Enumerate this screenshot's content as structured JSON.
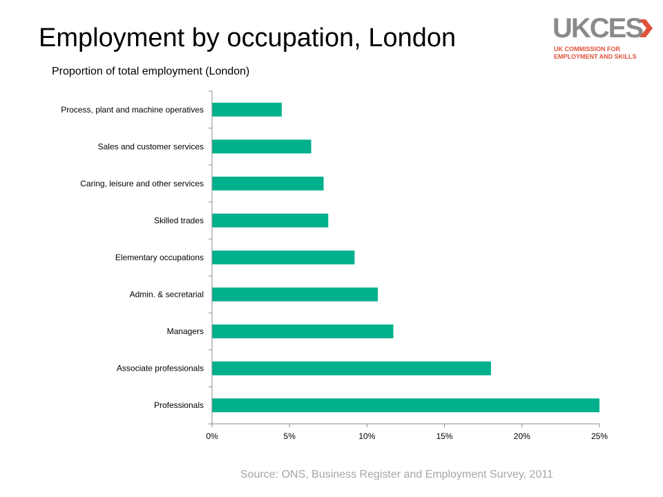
{
  "slide": {
    "title": "Employment by occupation, London",
    "source": "Source: ONS, Business Register and Employment Survey, 2011"
  },
  "logo": {
    "wordmark": "UKCES",
    "subtitle_line1": "UK COMMISSION FOR",
    "subtitle_line2": "EMPLOYMENT AND SKILLS",
    "colors": {
      "wordmark": "#8a8a8a",
      "accent": "#e0533a"
    }
  },
  "chart_data": {
    "type": "bar",
    "orientation": "horizontal",
    "title": "Proportion of total employment (London)",
    "xlabel": "",
    "ylabel": "",
    "categories": [
      "Process, plant and machine operatives",
      "Sales and customer services",
      "Caring, leisure and other services",
      "Skilled trades",
      "Elementary occupations",
      "Admin. & secretarial",
      "Managers",
      "Associate professionals",
      "Professionals"
    ],
    "values": [
      4.5,
      6.4,
      7.2,
      7.5,
      9.2,
      10.7,
      11.7,
      18.0,
      25.0
    ],
    "xlim": [
      0,
      25
    ],
    "x_ticks": [
      0,
      5,
      10,
      15,
      20,
      25
    ],
    "x_tick_labels": [
      "0%",
      "5%",
      "10%",
      "15%",
      "20%",
      "25%"
    ],
    "grid": false,
    "legend": "none",
    "bar_color": "#00b08c"
  }
}
